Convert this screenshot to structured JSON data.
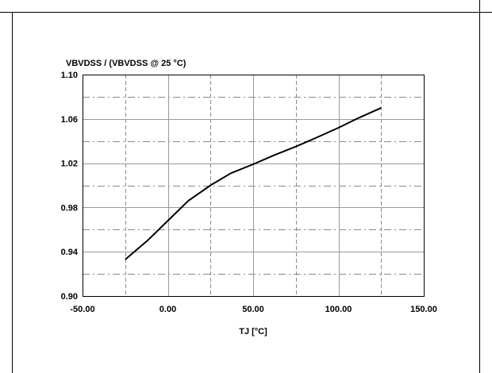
{
  "chart_data": {
    "type": "line",
    "title": "",
    "ylabel": "VBVDSS / (VBVDSS @ 25 °C)",
    "xlabel": "TJ [°C]",
    "xlim": [
      -50,
      150
    ],
    "ylim": [
      0.9,
      1.1
    ],
    "x_ticks": [
      -50,
      0,
      50,
      100,
      150
    ],
    "x_tick_labels": [
      "-50.00",
      "0.00",
      "50.00",
      "100.00",
      "150.00"
    ],
    "y_ticks": [
      0.9,
      0.94,
      0.98,
      1.02,
      1.06,
      1.1
    ],
    "y_tick_labels": [
      "0.90",
      "0.94",
      "0.98",
      "1.02",
      "1.06",
      "1.10"
    ],
    "minor_x_gridlines": [
      -25,
      25,
      75,
      125
    ],
    "minor_y_gridlines": [
      0.92,
      0.96,
      1.0,
      1.04,
      1.08
    ],
    "grid": true,
    "legend": "none",
    "series": [
      {
        "color": "#000000",
        "x": [
          -25,
          -12,
          0,
          12,
          25,
          37,
          50,
          62,
          75,
          87,
          100,
          112,
          125
        ],
        "y": [
          0.933,
          0.95,
          0.968,
          0.986,
          1.0,
          1.011,
          1.019,
          1.027,
          1.035,
          1.043,
          1.052,
          1.061,
          1.07
        ]
      }
    ]
  }
}
